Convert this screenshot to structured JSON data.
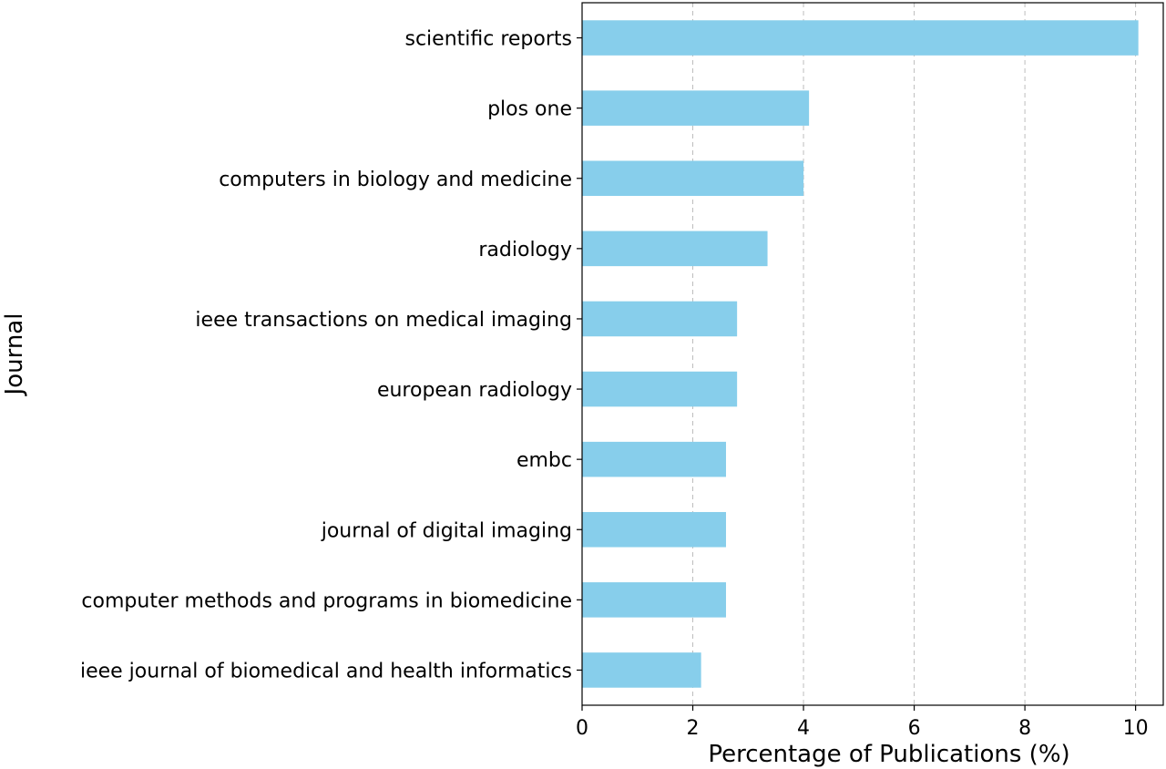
{
  "chart_data": {
    "type": "bar",
    "orientation": "horizontal",
    "title": "",
    "xlabel": "Percentage of Publications (%)",
    "ylabel": "Journal",
    "xlim": [
      0,
      10.5
    ],
    "xticks": [
      0,
      2,
      4,
      6,
      8,
      10
    ],
    "grid": "x-dashed",
    "bar_color": "#87CEEB",
    "categories": [
      "scientific reports",
      "plos one",
      "computers in biology and medicine",
      "radiology",
      "ieee transactions on medical imaging",
      "european radiology",
      "embc",
      "journal of digital imaging",
      "computer methods and programs in biomedicine",
      "ieee journal of biomedical and health informatics"
    ],
    "values": [
      10.05,
      4.1,
      4.0,
      3.35,
      2.8,
      2.8,
      2.6,
      2.6,
      2.6,
      2.15
    ]
  }
}
